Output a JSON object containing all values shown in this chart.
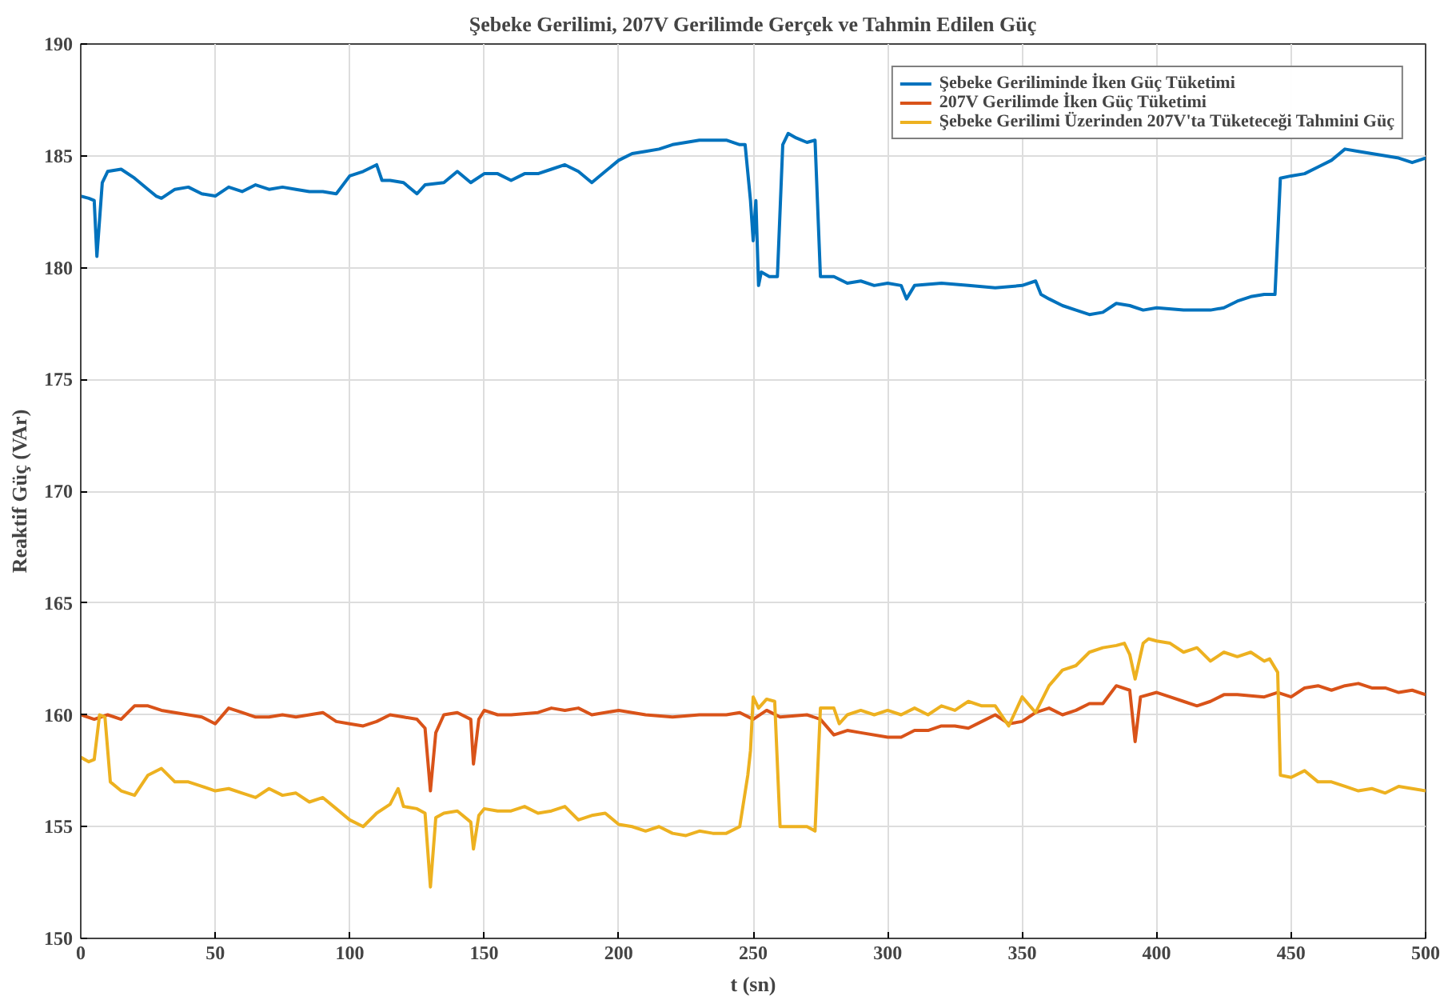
{
  "chart_data": {
    "type": "line",
    "title": "Şebeke Gerilimi, 207V Gerilimde Gerçek ve Tahmin Edilen Güç",
    "xlabel": "t (sn)",
    "ylabel": "Reaktif Güç (VAr)",
    "xlim": [
      0,
      500
    ],
    "ylim": [
      150,
      190
    ],
    "xticks": [
      0,
      50,
      100,
      150,
      200,
      250,
      300,
      350,
      400,
      450,
      500
    ],
    "yticks": [
      150,
      155,
      160,
      165,
      170,
      175,
      180,
      185,
      190
    ],
    "grid": true,
    "legend": "top right",
    "line_style": "solid",
    "marker": "none",
    "series": [
      {
        "name": "Şebeke Geriliminde İken Güç Tüketimi",
        "color": "#0072bd",
        "x": [
          0,
          3,
          5,
          6,
          8,
          10,
          15,
          20,
          25,
          28,
          30,
          35,
          40,
          45,
          50,
          55,
          60,
          65,
          70,
          75,
          80,
          85,
          90,
          95,
          100,
          105,
          110,
          112,
          115,
          120,
          125,
          128,
          135,
          140,
          145,
          150,
          155,
          160,
          165,
          170,
          175,
          180,
          185,
          190,
          195,
          200,
          205,
          210,
          215,
          220,
          225,
          230,
          235,
          240,
          245,
          247,
          249,
          250,
          251,
          252,
          253,
          256,
          259,
          261,
          263,
          266,
          270,
          273,
          275,
          280,
          285,
          290,
          295,
          300,
          305,
          307,
          310,
          320,
          330,
          340,
          350,
          355,
          357,
          360,
          365,
          370,
          375,
          380,
          385,
          390,
          395,
          400,
          410,
          420,
          425,
          430,
          435,
          440,
          444,
          446,
          450,
          455,
          460,
          465,
          470,
          475,
          480,
          485,
          490,
          495,
          500
        ],
        "values": [
          183.2,
          183.1,
          183.0,
          180.5,
          183.8,
          184.3,
          184.4,
          184.0,
          183.5,
          183.2,
          183.1,
          183.5,
          183.6,
          183.3,
          183.2,
          183.6,
          183.4,
          183.7,
          183.5,
          183.6,
          183.5,
          183.4,
          183.4,
          183.3,
          184.1,
          184.3,
          184.6,
          183.9,
          183.9,
          183.8,
          183.3,
          183.7,
          183.8,
          184.3,
          183.8,
          184.2,
          184.2,
          183.9,
          184.2,
          184.2,
          184.4,
          184.6,
          184.3,
          183.8,
          184.3,
          184.8,
          185.1,
          185.2,
          185.3,
          185.5,
          185.6,
          185.7,
          185.7,
          185.7,
          185.5,
          185.5,
          183.0,
          181.2,
          183.0,
          179.2,
          179.8,
          179.6,
          179.6,
          185.5,
          186.0,
          185.8,
          185.6,
          185.7,
          179.6,
          179.6,
          179.3,
          179.4,
          179.2,
          179.3,
          179.2,
          178.6,
          179.2,
          179.3,
          179.2,
          179.1,
          179.2,
          179.4,
          178.8,
          178.6,
          178.3,
          178.1,
          177.9,
          178.0,
          178.4,
          178.3,
          178.1,
          178.2,
          178.1,
          178.1,
          178.2,
          178.5,
          178.7,
          178.8,
          178.8,
          184.0,
          184.1,
          184.2,
          184.5,
          184.8,
          185.3,
          185.2,
          185.1,
          185.0,
          184.9,
          184.7,
          184.9
        ]
      },
      {
        "name": "207V Gerilimde İken Güç Tüketimi",
        "color": "#d95319",
        "x": [
          0,
          5,
          10,
          15,
          20,
          25,
          30,
          35,
          40,
          45,
          50,
          55,
          60,
          65,
          70,
          75,
          80,
          85,
          90,
          95,
          100,
          105,
          110,
          115,
          120,
          125,
          128,
          130,
          132,
          135,
          140,
          145,
          146,
          148,
          150,
          155,
          160,
          170,
          175,
          180,
          185,
          190,
          200,
          210,
          220,
          230,
          240,
          245,
          250,
          255,
          260,
          270,
          275,
          280,
          285,
          290,
          300,
          305,
          310,
          315,
          320,
          325,
          330,
          335,
          340,
          345,
          350,
          355,
          360,
          365,
          370,
          375,
          380,
          385,
          390,
          392,
          394,
          400,
          405,
          410,
          415,
          420,
          425,
          430,
          440,
          445,
          450,
          455,
          460,
          465,
          470,
          475,
          480,
          485,
          490,
          495,
          500
        ],
        "values": [
          160.0,
          159.8,
          160.0,
          159.8,
          160.4,
          160.4,
          160.2,
          160.1,
          160.0,
          159.9,
          159.6,
          160.3,
          160.1,
          159.9,
          159.9,
          160.0,
          159.9,
          160.0,
          160.1,
          159.7,
          159.6,
          159.5,
          159.7,
          160.0,
          159.9,
          159.8,
          159.4,
          156.6,
          159.2,
          160.0,
          160.1,
          159.8,
          157.8,
          159.8,
          160.2,
          160.0,
          160.0,
          160.1,
          160.3,
          160.2,
          160.3,
          160.0,
          160.2,
          160.0,
          159.9,
          160.0,
          160.0,
          160.1,
          159.8,
          160.2,
          159.9,
          160.0,
          159.8,
          159.1,
          159.3,
          159.2,
          159.0,
          159.0,
          159.3,
          159.3,
          159.5,
          159.5,
          159.4,
          159.7,
          160.0,
          159.6,
          159.7,
          160.1,
          160.3,
          160.0,
          160.2,
          160.5,
          160.5,
          161.3,
          161.1,
          158.8,
          160.8,
          161.0,
          160.8,
          160.6,
          160.4,
          160.6,
          160.9,
          160.9,
          160.8,
          161.0,
          160.8,
          161.2,
          161.3,
          161.1,
          161.3,
          161.4,
          161.2,
          161.2,
          161.0,
          161.1,
          160.9
        ]
      },
      {
        "name": "Şebeke Gerilimi Üzerinden 207V'ta Tüketeceği Tahmini Güç",
        "color": "#edb120",
        "x": [
          0,
          3,
          5,
          7,
          9,
          11,
          15,
          20,
          25,
          30,
          35,
          40,
          45,
          50,
          55,
          60,
          65,
          70,
          75,
          80,
          85,
          90,
          95,
          100,
          105,
          110,
          115,
          118,
          120,
          125,
          128,
          130,
          132,
          135,
          140,
          145,
          146,
          148,
          150,
          155,
          160,
          165,
          170,
          175,
          180,
          185,
          190,
          195,
          200,
          205,
          210,
          215,
          220,
          225,
          230,
          235,
          240,
          245,
          248,
          249,
          250,
          252,
          255,
          258,
          260,
          265,
          270,
          273,
          275,
          280,
          282,
          285,
          290,
          295,
          300,
          305,
          310,
          315,
          320,
          325,
          330,
          335,
          340,
          345,
          350,
          355,
          360,
          365,
          370,
          375,
          380,
          385,
          388,
          390,
          392,
          395,
          397,
          400,
          405,
          410,
          415,
          420,
          425,
          430,
          435,
          440,
          442,
          445,
          446,
          450,
          455,
          460,
          465,
          470,
          475,
          480,
          485,
          490,
          495,
          500
        ],
        "values": [
          158.1,
          157.9,
          158.0,
          160.0,
          159.9,
          157.0,
          156.6,
          156.4,
          157.3,
          157.6,
          157.0,
          157.0,
          156.8,
          156.6,
          156.7,
          156.5,
          156.3,
          156.7,
          156.4,
          156.5,
          156.1,
          156.3,
          155.8,
          155.3,
          155.0,
          155.6,
          156.0,
          156.7,
          155.9,
          155.8,
          155.6,
          152.3,
          155.4,
          155.6,
          155.7,
          155.2,
          154.0,
          155.5,
          155.8,
          155.7,
          155.7,
          155.9,
          155.6,
          155.7,
          155.9,
          155.3,
          155.5,
          155.6,
          155.1,
          155.0,
          154.8,
          155.0,
          154.7,
          154.6,
          154.8,
          154.7,
          154.7,
          155.0,
          157.3,
          158.4,
          160.8,
          160.3,
          160.7,
          160.6,
          155.0,
          155.0,
          155.0,
          154.8,
          160.3,
          160.3,
          159.6,
          160.0,
          160.2,
          160.0,
          160.2,
          160.0,
          160.3,
          160.0,
          160.4,
          160.2,
          160.6,
          160.4,
          160.4,
          159.5,
          160.8,
          160.1,
          161.3,
          162.0,
          162.2,
          162.8,
          163.0,
          163.1,
          163.2,
          162.7,
          161.6,
          163.2,
          163.4,
          163.3,
          163.2,
          162.8,
          163.0,
          162.4,
          162.8,
          162.6,
          162.8,
          162.4,
          162.5,
          161.9,
          157.3,
          157.2,
          157.5,
          157.0,
          157.0,
          156.8,
          156.6,
          156.7,
          156.5,
          156.8,
          156.7,
          156.6
        ]
      }
    ]
  }
}
